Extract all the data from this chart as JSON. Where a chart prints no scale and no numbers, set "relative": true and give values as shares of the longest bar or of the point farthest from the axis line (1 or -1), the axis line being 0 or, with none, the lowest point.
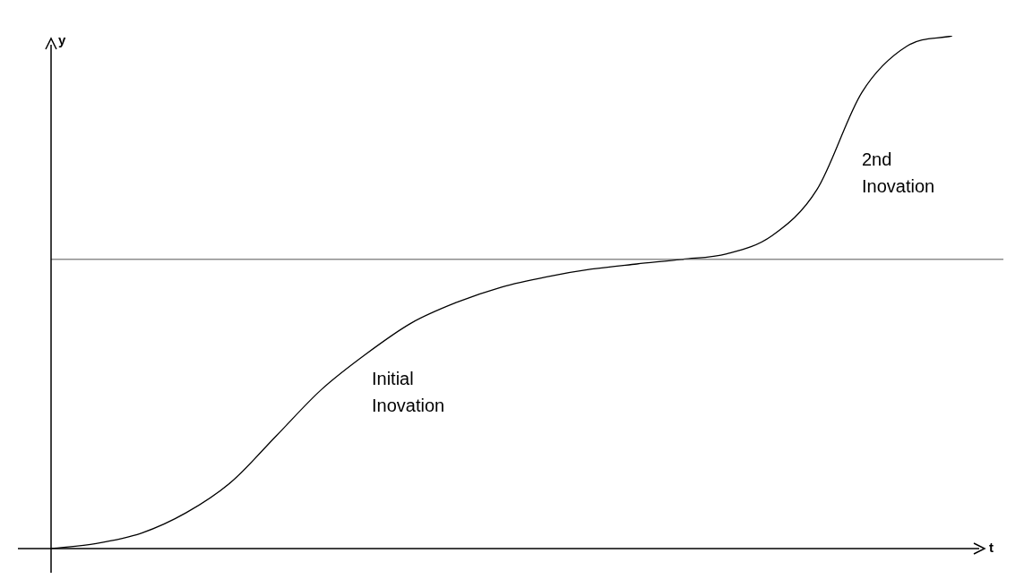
{
  "chart_data": {
    "type": "line",
    "relative": true,
    "xlabel": "t",
    "ylabel": "y",
    "color": "#000000",
    "marker": "none",
    "line_style": "solid",
    "legend": false,
    "categories": [
      null,
      null,
      null,
      null,
      null,
      null,
      null,
      null,
      null,
      null,
      null,
      null,
      null,
      null,
      null,
      null,
      null,
      null,
      null,
      null,
      null,
      null
    ],
    "values": [
      0,
      0.01,
      0.03,
      0.07,
      0.13,
      0.22,
      0.31,
      0.38,
      0.44,
      0.48,
      0.51,
      0.53,
      0.545,
      0.555,
      0.564,
      0.575,
      0.61,
      0.7,
      0.89,
      0.98,
      1,
      null
    ],
    "ref_lines": [
      {
        "axis": "y",
        "value": 0.564,
        "color": "#555555"
      }
    ],
    "annotations": [
      "Initial\nInovation",
      "2nd\nInovation"
    ]
  }
}
